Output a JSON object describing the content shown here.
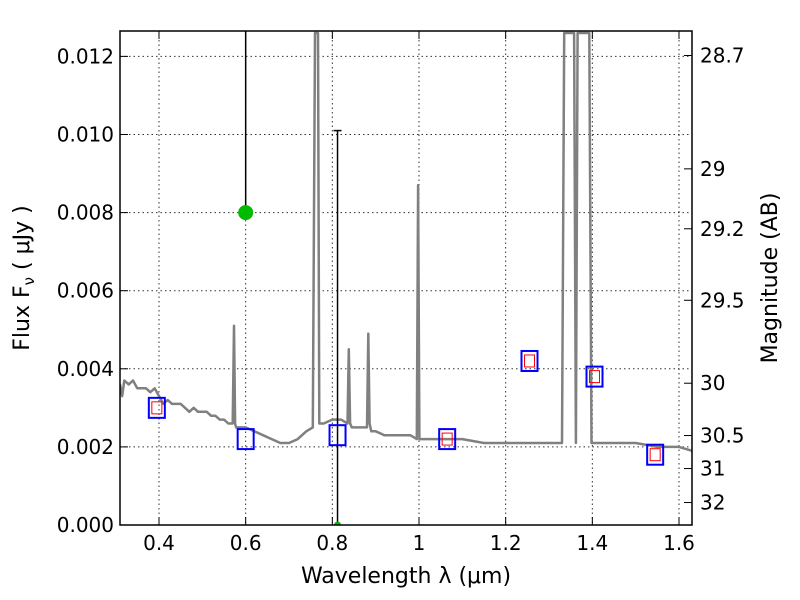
{
  "chart_data": {
    "type": "line",
    "xlabel": "Wavelength  λ (μm)",
    "ylabel": "Flux  F",
    "ylabel_sub": "ν",
    "ylabel_unit": "  ( μJy )",
    "y2label": "Magnitude (AB)",
    "xlim": [
      0.31,
      1.63
    ],
    "ylim": [
      0.0,
      0.01265
    ],
    "grid": true,
    "x_ticks": [
      0.4,
      0.6,
      0.8,
      1.0,
      1.2,
      1.4,
      1.6
    ],
    "x_tick_labels": [
      "0.4",
      "0.6",
      "0.8",
      "1",
      "1.2",
      "1.4",
      "1.6"
    ],
    "y_ticks": [
      0.0,
      0.002,
      0.004,
      0.006,
      0.008,
      0.01,
      0.012
    ],
    "y_tick_labels": [
      "0.000",
      "0.002",
      "0.004",
      "0.006",
      "0.008",
      "0.010",
      "0.012"
    ],
    "y2_ticks": [
      {
        "mag": 28.7,
        "label": "28.7"
      },
      {
        "mag": 29,
        "label": "29"
      },
      {
        "mag": 29.2,
        "label": "29.2"
      },
      {
        "mag": 29.5,
        "label": "29.5"
      },
      {
        "mag": 30,
        "label": "30"
      },
      {
        "mag": 30.5,
        "label": "30.5"
      },
      {
        "mag": 31,
        "label": "31"
      },
      {
        "mag": 32,
        "label": "32"
      }
    ],
    "series": [
      {
        "name": "model spectrum",
        "color": "#808080",
        "x": [
          0.31,
          0.315,
          0.32,
          0.33,
          0.34,
          0.35,
          0.36,
          0.37,
          0.38,
          0.39,
          0.4,
          0.41,
          0.42,
          0.43,
          0.44,
          0.45,
          0.46,
          0.47,
          0.48,
          0.49,
          0.5,
          0.51,
          0.52,
          0.53,
          0.54,
          0.55,
          0.56,
          0.57,
          0.573,
          0.5755,
          0.578,
          0.58,
          0.59,
          0.6,
          0.62,
          0.64,
          0.66,
          0.68,
          0.7,
          0.72,
          0.74,
          0.755,
          0.76,
          0.7635,
          0.767,
          0.77,
          0.78,
          0.8,
          0.82,
          0.835,
          0.838,
          0.841,
          0.845,
          0.86,
          0.88,
          0.883,
          0.886,
          0.89,
          0.9,
          0.92,
          0.94,
          0.96,
          0.98,
          0.995,
          0.998,
          1.001,
          1.005,
          1.02,
          1.05,
          1.1,
          1.15,
          1.2,
          1.25,
          1.3,
          1.33,
          1.335,
          1.34,
          1.345,
          1.35,
          1.355,
          1.358,
          1.362,
          1.366,
          1.37,
          1.375,
          1.38,
          1.385,
          1.39,
          1.393,
          1.398,
          1.45,
          1.5,
          1.55,
          1.6,
          1.63
        ],
        "y": [
          0.0036,
          0.0033,
          0.0037,
          0.0036,
          0.0037,
          0.0035,
          0.0035,
          0.0035,
          0.0034,
          0.0035,
          0.0033,
          0.0031,
          0.0032,
          0.0031,
          0.0031,
          0.0031,
          0.003,
          0.0029,
          0.003,
          0.0029,
          0.0029,
          0.0029,
          0.0028,
          0.0028,
          0.0027,
          0.0027,
          0.0026,
          0.0026,
          0.0051,
          0.0026,
          0.0025,
          0.0025,
          0.0025,
          0.0025,
          0.0024,
          0.0023,
          0.0022,
          0.0021,
          0.0021,
          0.0022,
          0.0024,
          0.0025,
          0.0126,
          0.0126,
          0.0126,
          0.0026,
          0.0026,
          0.0027,
          0.0027,
          0.0026,
          0.0045,
          0.0026,
          0.0025,
          0.0025,
          0.0025,
          0.0049,
          0.0026,
          0.0024,
          0.0024,
          0.0023,
          0.0023,
          0.0023,
          0.0023,
          0.0022,
          0.0087,
          0.0022,
          0.0022,
          0.0022,
          0.0022,
          0.0022,
          0.0021,
          0.0021,
          0.0021,
          0.0021,
          0.0021,
          0.0126,
          0.0126,
          0.0126,
          0.0126,
          0.0126,
          0.0126,
          0.0021,
          0.0126,
          0.0126,
          0.0126,
          0.0126,
          0.0126,
          0.0126,
          0.0126,
          0.0021,
          0.0021,
          0.0021,
          0.002,
          0.002,
          0.0019
        ]
      }
    ],
    "model_photometry": {
      "name": "model band fluxes",
      "color": "#0000ff",
      "x": [
        0.395,
        0.6,
        0.812,
        1.065,
        1.255,
        1.405,
        1.545
      ],
      "y": [
        0.003,
        0.0022,
        0.0023,
        0.0022,
        0.0042,
        0.0038,
        0.0018
      ]
    },
    "observed_photometry": {
      "name": "observed fluxes",
      "color": "#ff0000",
      "x": [
        0.395,
        1.065,
        1.255,
        1.405,
        1.545
      ],
      "y": [
        0.003,
        0.0022,
        0.0042,
        0.0038,
        0.0018
      ]
    },
    "detections": [
      {
        "name": "detection",
        "x": 0.6,
        "y": 0.008,
        "color": "#00bb00",
        "err_low": 0.0,
        "err_high": 0.01265
      }
    ],
    "upper_limits": [
      {
        "name": "upper limit",
        "x": 0.812,
        "y": 0.0,
        "color": "#00bb00",
        "err_high": 0.0101
      }
    ]
  }
}
